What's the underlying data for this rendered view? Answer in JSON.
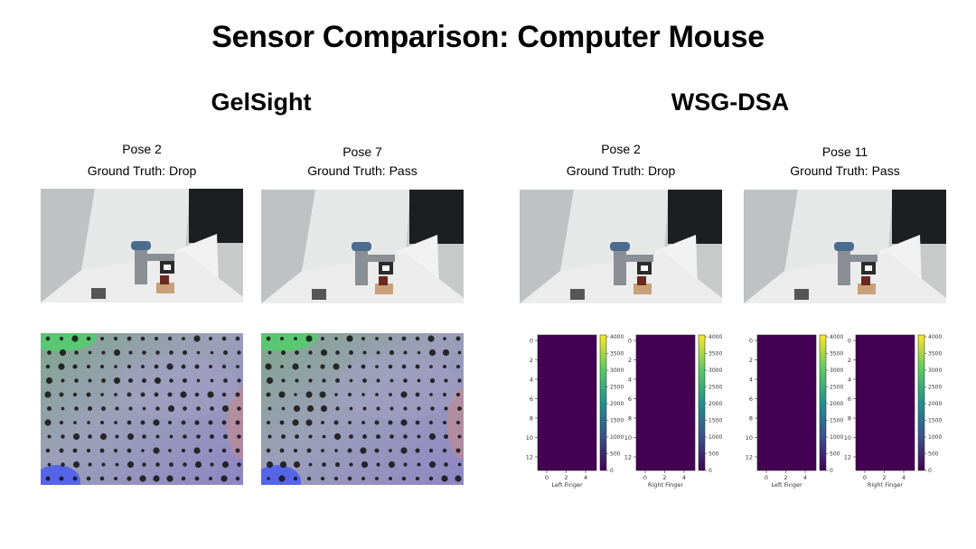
{
  "title": "Sensor Comparison: Computer Mouse",
  "groups": [
    {
      "name": "GelSight",
      "columns": [
        {
          "pose": "Pose 2",
          "ground_truth": "Ground Truth: Drop"
        },
        {
          "pose": "Pose 7",
          "ground_truth": "Ground Truth: Pass"
        }
      ]
    },
    {
      "name": "WSG-DSA",
      "columns": [
        {
          "pose": "Pose 2",
          "ground_truth": "Ground Truth: Drop"
        },
        {
          "pose": "Pose 11",
          "ground_truth": "Ground Truth: Pass"
        }
      ]
    }
  ],
  "heatmap": {
    "y_ticks": [
      "0",
      "2",
      "4",
      "6",
      "8",
      "10",
      "12"
    ],
    "x_ticks": [
      "0",
      "2",
      "4"
    ],
    "colorbar_ticks": [
      "4000",
      "3500",
      "3000",
      "2500",
      "2000",
      "1500",
      "1000",
      "500",
      "0"
    ],
    "left_label": "Left Finger",
    "right_label": "Right Finger",
    "fill_color": "#440154"
  },
  "colors": {
    "viridis": [
      "#440154",
      "#3b528b",
      "#21918c",
      "#5ec962",
      "#fde725"
    ]
  }
}
